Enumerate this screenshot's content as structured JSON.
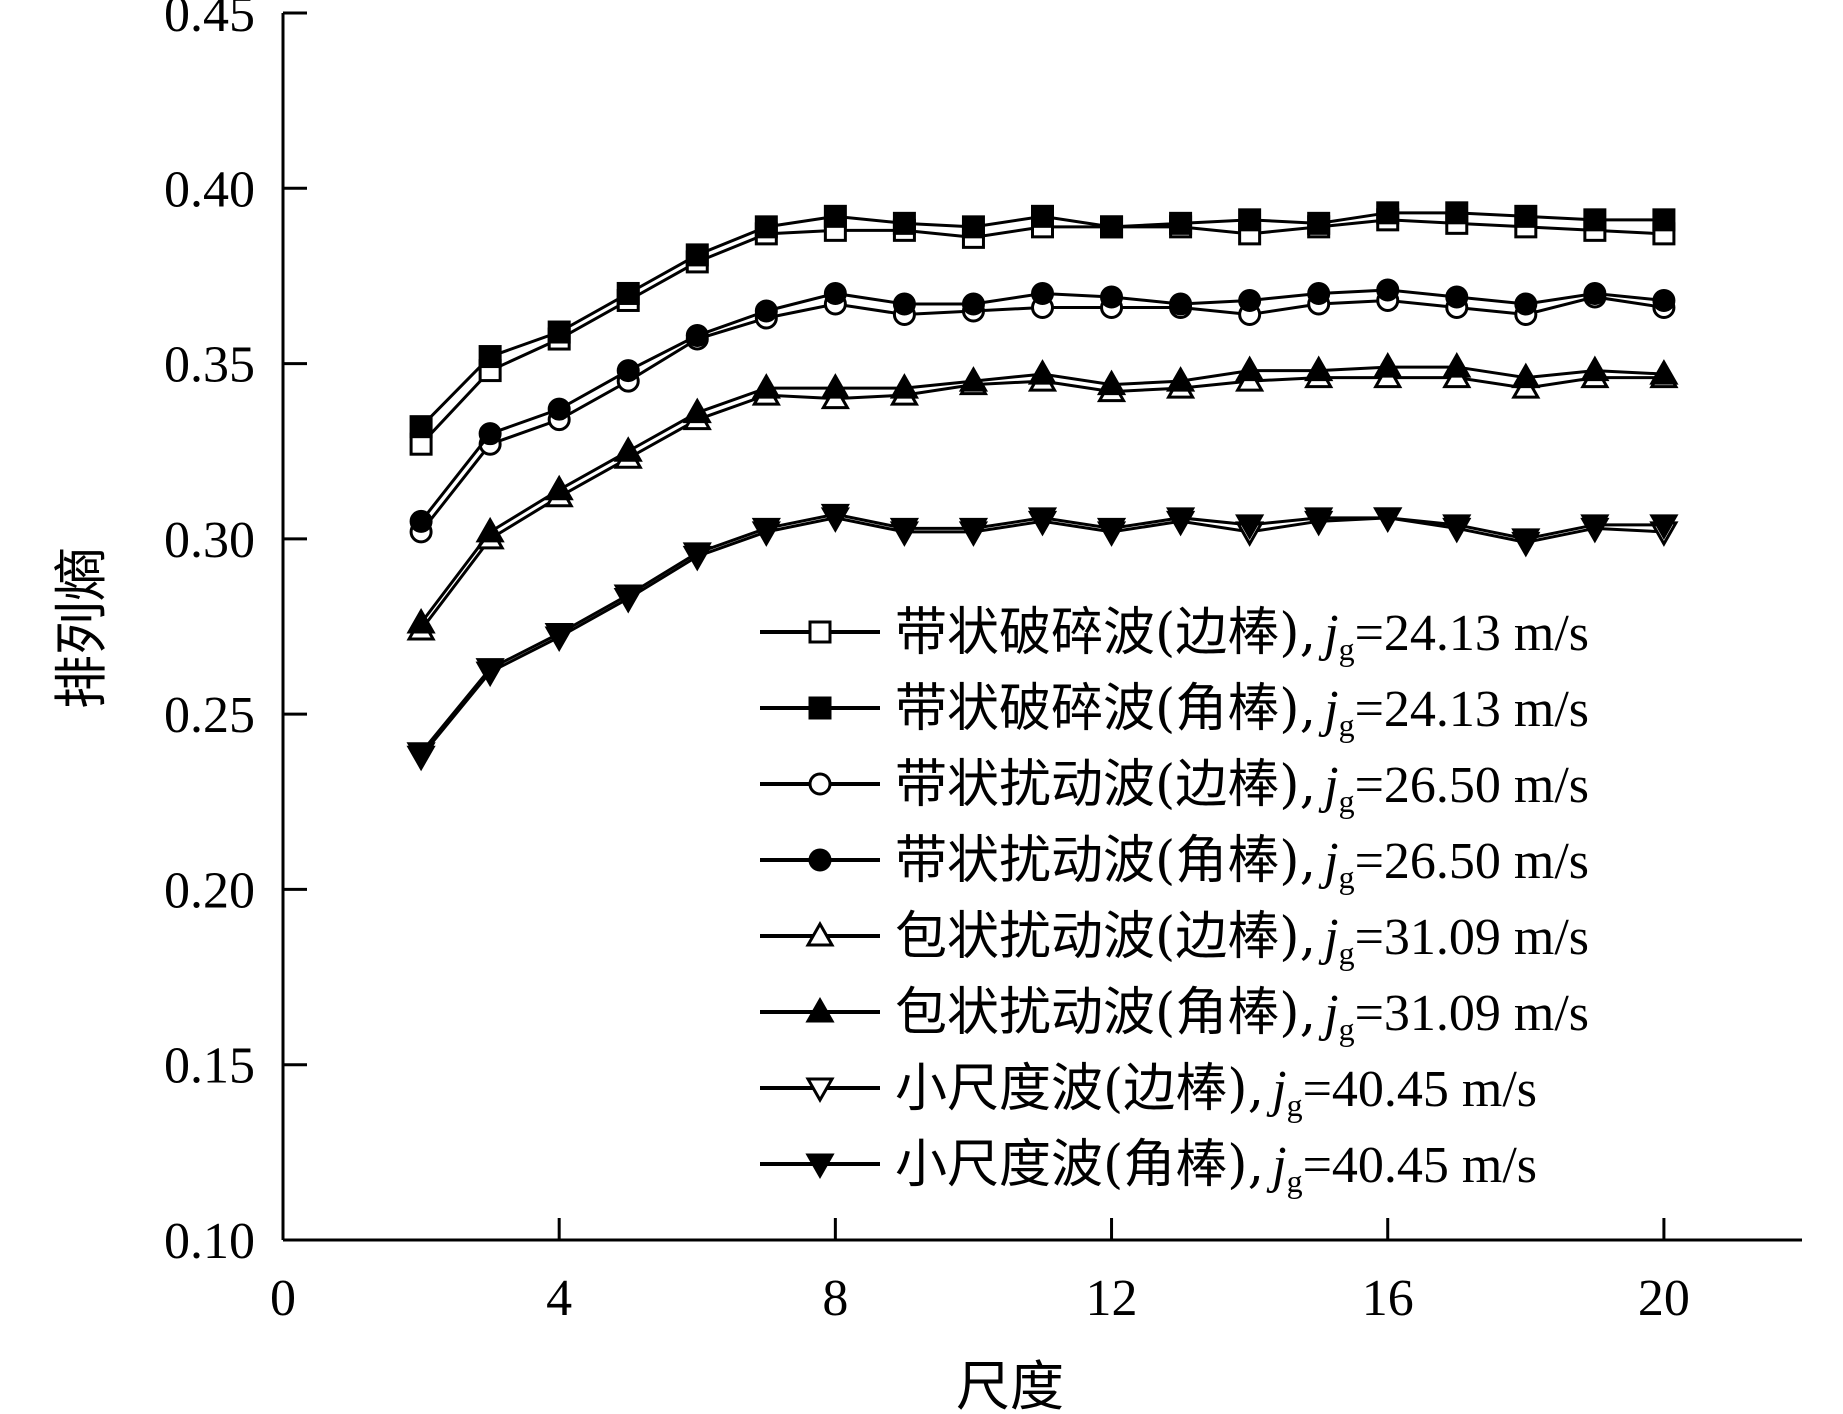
{
  "chart_data": {
    "type": "line",
    "xlabel": "尺度",
    "ylabel": "排列熵",
    "xlim": [
      0,
      22
    ],
    "ylim": [
      0.1,
      0.45
    ],
    "xticks": [
      0,
      4,
      8,
      12,
      16,
      20
    ],
    "yticks": [
      "0.10",
      "0.15",
      "0.20",
      "0.25",
      "0.30",
      "0.35",
      "0.40",
      "0.45"
    ],
    "xtick_labels": [
      "0",
      "4",
      "8",
      "12",
      "16",
      "20"
    ],
    "grid": false,
    "legend_position": "bottom-right",
    "x": [
      2,
      3,
      4,
      5,
      6,
      7,
      8,
      9,
      10,
      11,
      12,
      13,
      14,
      15,
      16,
      17,
      18,
      19,
      20
    ],
    "series": [
      {
        "name": "带状破碎波(边棒), jg=24.13 m/s",
        "label_text": "带状破碎波(边棒),",
        "jg_value": "=24.13 m/s",
        "marker": "square-open",
        "values": [
          0.327,
          0.348,
          0.357,
          0.368,
          0.379,
          0.387,
          0.388,
          0.388,
          0.386,
          0.389,
          0.389,
          0.389,
          0.387,
          0.389,
          0.391,
          0.39,
          0.389,
          0.388,
          0.387
        ]
      },
      {
        "name": "带状破碎波(角棒), jg=24.13 m/s",
        "label_text": "带状破碎波(角棒),",
        "jg_value": "=24.13 m/s",
        "marker": "square-filled",
        "values": [
          0.332,
          0.352,
          0.359,
          0.37,
          0.381,
          0.389,
          0.392,
          0.39,
          0.389,
          0.392,
          0.389,
          0.39,
          0.391,
          0.39,
          0.393,
          0.393,
          0.392,
          0.391,
          0.391
        ]
      },
      {
        "name": "带状扰动波(边棒), jg=26.50 m/s",
        "label_text": "带状扰动波(边棒),",
        "jg_value": "=26.50 m/s",
        "marker": "circle-open",
        "values": [
          0.302,
          0.327,
          0.334,
          0.345,
          0.357,
          0.363,
          0.367,
          0.364,
          0.365,
          0.366,
          0.366,
          0.366,
          0.364,
          0.367,
          0.368,
          0.366,
          0.364,
          0.369,
          0.366
        ]
      },
      {
        "name": "带状扰动波(角棒), jg=26.50 m/s",
        "label_text": "带状扰动波(角棒),",
        "jg_value": "=26.50 m/s",
        "marker": "circle-filled",
        "values": [
          0.305,
          0.33,
          0.337,
          0.348,
          0.358,
          0.365,
          0.37,
          0.367,
          0.367,
          0.37,
          0.369,
          0.367,
          0.368,
          0.37,
          0.371,
          0.369,
          0.367,
          0.37,
          0.368
        ]
      },
      {
        "name": "包状扰动波(边棒), jg=31.09 m/s",
        "label_text": "包状扰动波(边棒),",
        "jg_value": "=31.09 m/s",
        "marker": "triangle-up-open",
        "values": [
          0.274,
          0.3,
          0.312,
          0.323,
          0.334,
          0.341,
          0.34,
          0.341,
          0.344,
          0.345,
          0.342,
          0.343,
          0.345,
          0.346,
          0.346,
          0.346,
          0.343,
          0.346,
          0.346
        ]
      },
      {
        "name": "包状扰动波(角棒), jg=31.09 m/s",
        "label_text": "包状扰动波(角棒),",
        "jg_value": "=31.09 m/s",
        "marker": "triangle-up-filled",
        "values": [
          0.276,
          0.302,
          0.314,
          0.325,
          0.336,
          0.343,
          0.343,
          0.343,
          0.345,
          0.347,
          0.344,
          0.345,
          0.348,
          0.348,
          0.349,
          0.349,
          0.346,
          0.348,
          0.347
        ]
      },
      {
        "name": "小尺度波(边棒), jg=40.45 m/s",
        "label_text": "小尺度波(边棒),",
        "jg_value": "=40.45 m/s",
        "marker": "triangle-down-open",
        "values": [
          0.238,
          0.262,
          0.272,
          0.283,
          0.295,
          0.302,
          0.306,
          0.302,
          0.302,
          0.305,
          0.302,
          0.305,
          0.302,
          0.305,
          0.306,
          0.303,
          0.299,
          0.303,
          0.302
        ]
      },
      {
        "name": "小尺度波(角棒), jg=40.45 m/s",
        "label_text": "小尺度波(角棒),",
        "jg_value": "=40.45 m/s",
        "marker": "triangle-down-filled",
        "values": [
          0.239,
          0.263,
          0.273,
          0.284,
          0.296,
          0.303,
          0.307,
          0.303,
          0.303,
          0.306,
          0.303,
          0.306,
          0.304,
          0.306,
          0.306,
          0.304,
          0.3,
          0.304,
          0.304
        ]
      }
    ]
  }
}
